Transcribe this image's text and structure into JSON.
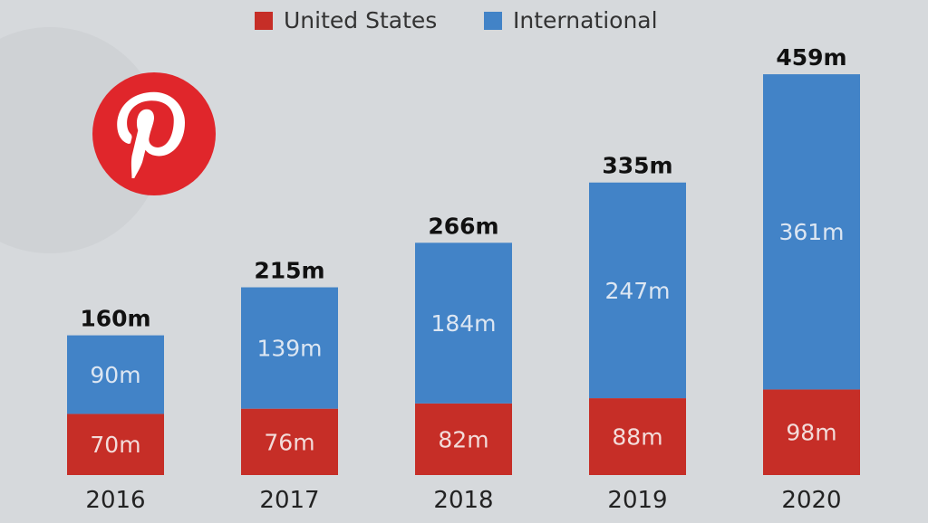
{
  "chart_data": {
    "type": "bar",
    "stacked": true,
    "title": "",
    "categories": [
      "2016",
      "2017",
      "2018",
      "2019",
      "2020"
    ],
    "series": [
      {
        "name": "United States",
        "values": [
          70,
          76,
          82,
          88,
          98
        ],
        "color": "#c62e27",
        "labels": [
          "70m",
          "76m",
          "82m",
          "88m",
          "98m"
        ]
      },
      {
        "name": "International",
        "values": [
          90,
          139,
          184,
          247,
          361
        ],
        "color": "#4283c7",
        "labels": [
          "90m",
          "139m",
          "184m",
          "247m",
          "361m"
        ]
      }
    ],
    "totals": [
      160,
      215,
      266,
      335,
      459
    ],
    "total_labels": [
      "160m",
      "215m",
      "266m",
      "335m",
      "459m"
    ],
    "legend_position": "top-center",
    "grid": false,
    "ylim": [
      0,
      470
    ]
  },
  "brand": {
    "logo": "pinterest-logo",
    "color": "#e0262b"
  }
}
